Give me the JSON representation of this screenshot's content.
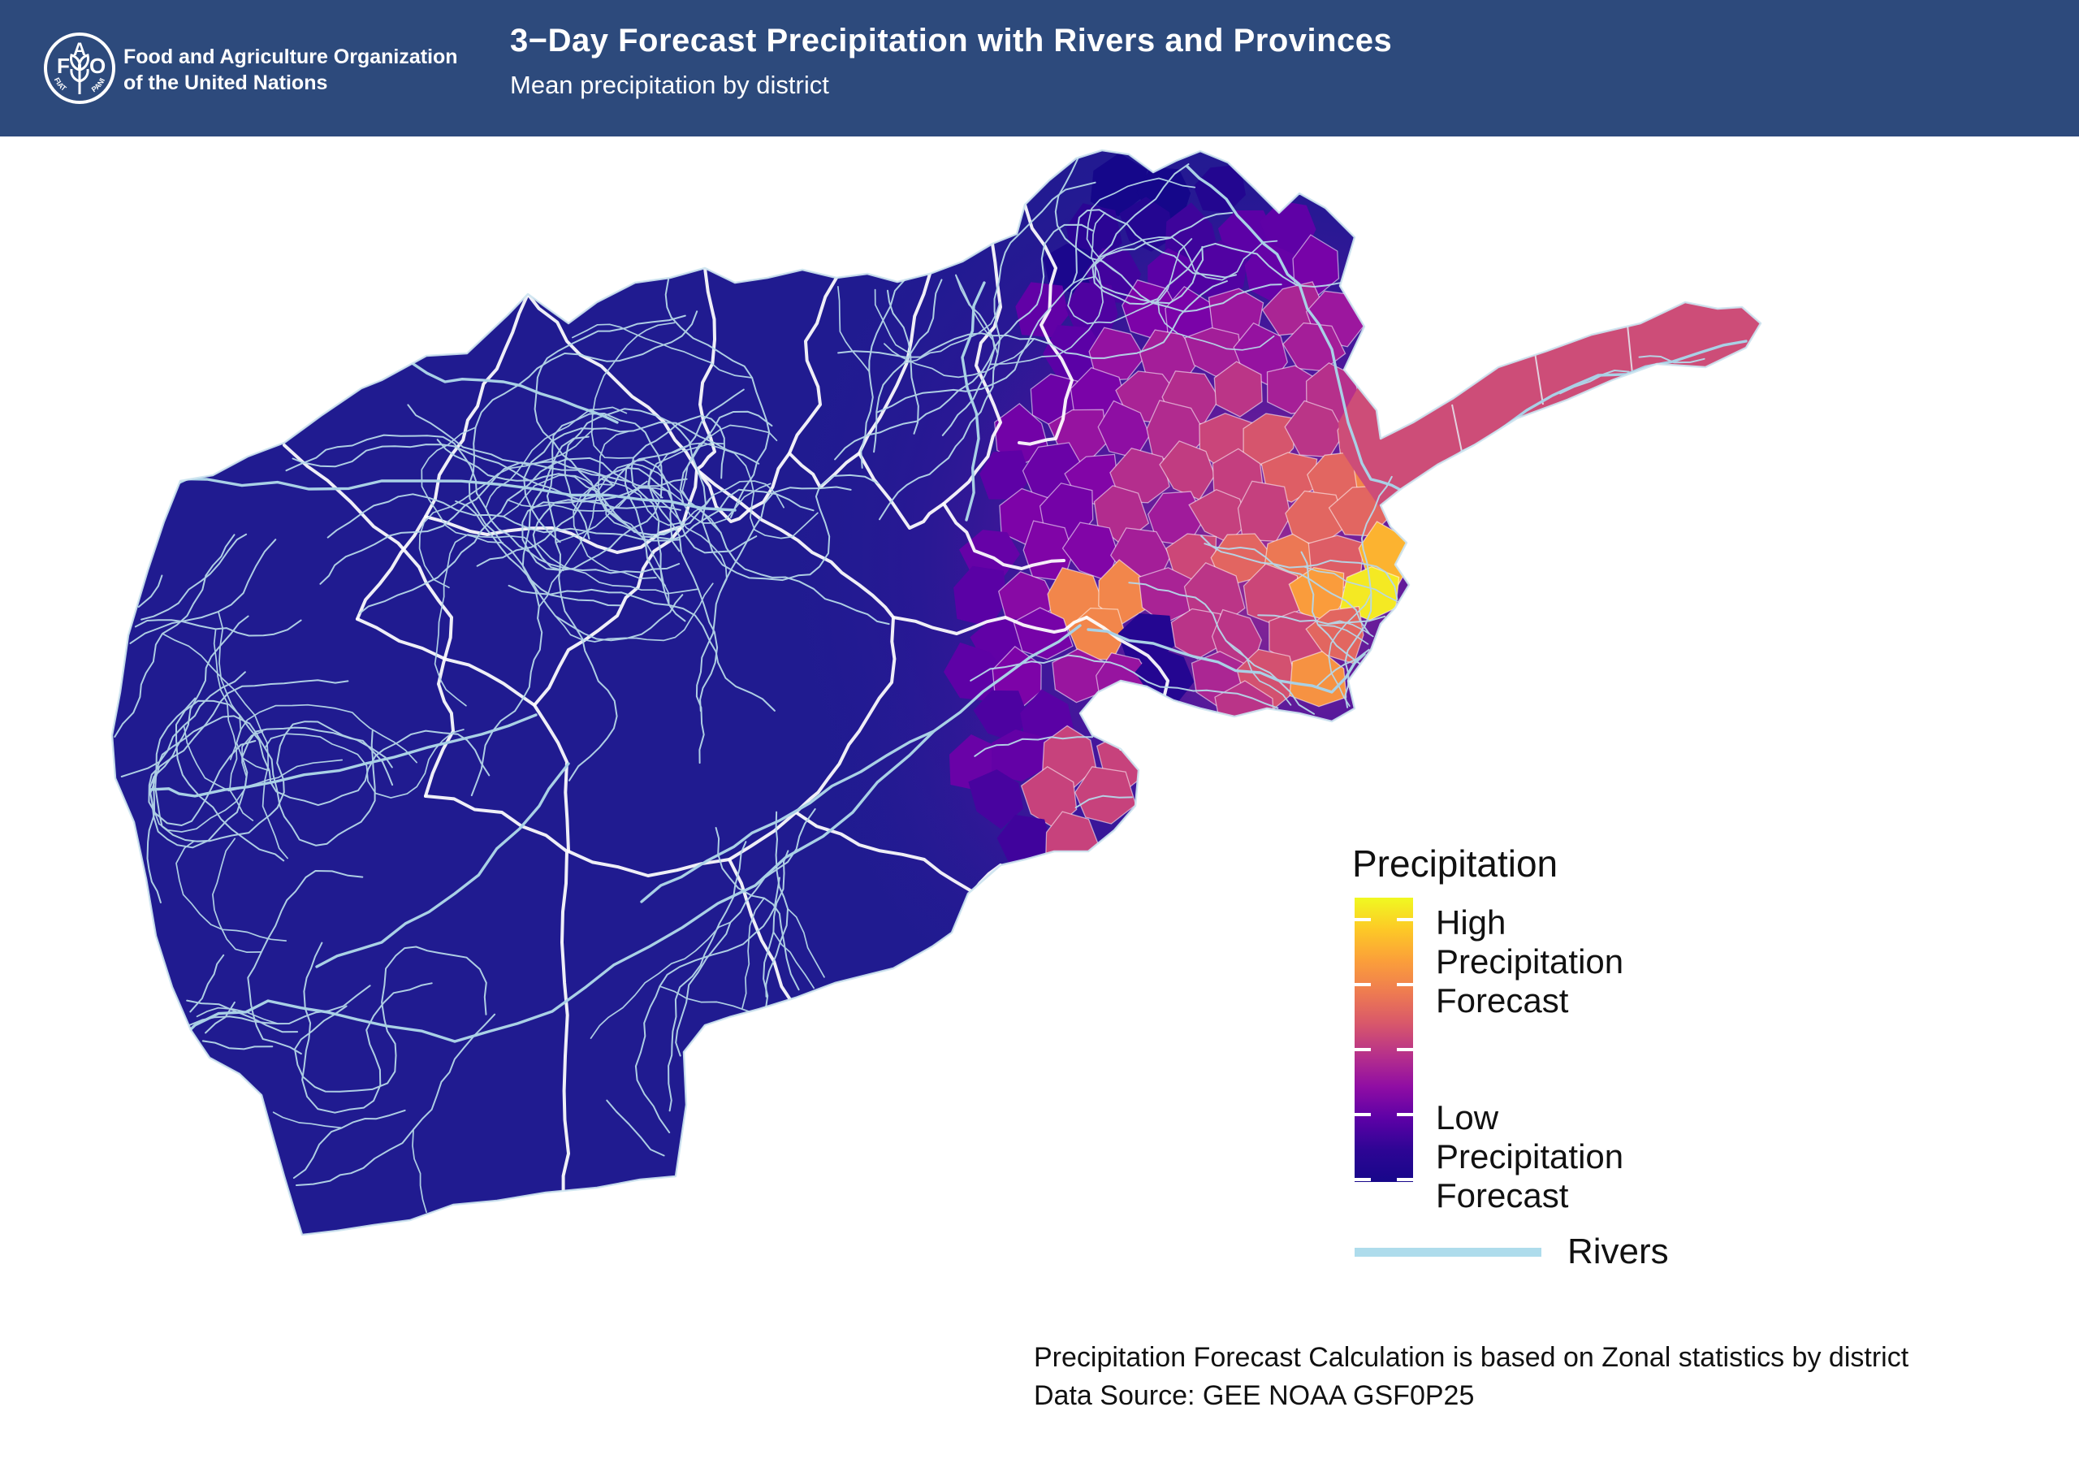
{
  "header": {
    "bg_color": "#2d4a7c",
    "org_line1": "Food and Agriculture Organization",
    "org_line2": "of the United Nations",
    "title": "3−Day Forecast Precipitation with Rivers and Provinces",
    "subtitle": "Mean precipitation by district",
    "logo": {
      "letters": [
        "F",
        "A",
        "O"
      ],
      "motto_left": "FIAT",
      "motto_right": "PANIS"
    }
  },
  "legend": {
    "title": "Precipitation",
    "high_label": "High Precipitation Forecast",
    "low_label": "Low Precipitation Forecast",
    "rivers_label": "Rivers",
    "gradient_top_to_bottom": [
      "#f0f921",
      "#fdc926",
      "#fb9f3a",
      "#ee7b51",
      "#d8576b",
      "#b6308b",
      "#8f0da4",
      "#5c01a6",
      "#2d0594",
      "#17078a"
    ],
    "rivers_swatch_color": "#aedcec",
    "tick_color": "#ffffff"
  },
  "footer": {
    "line1": "Precipitation Forecast Calculation is based on Zonal statistics by district",
    "line2": "Data Source: GEE NOAA GSF0P25"
  },
  "map": {
    "base_color": "#201b90",
    "river_color": "#b6d8e9",
    "major_river_color": "#a9d1e6",
    "province_border_color": "#ffffff",
    "country_border_color": "#cde4f0",
    "wakhan_color": "#cd4d78",
    "high_spot_color": "#f2f21f",
    "plasma_stops": [
      [
        0,
        "#0d0887"
      ],
      [
        0.12,
        "#3a049a"
      ],
      [
        0.25,
        "#5c01a6"
      ],
      [
        0.38,
        "#7e03a8"
      ],
      [
        0.5,
        "#9c179e"
      ],
      [
        0.6,
        "#b52f8c"
      ],
      [
        0.7,
        "#cc4778"
      ],
      [
        0.78,
        "#de5f65"
      ],
      [
        0.86,
        "#ed7953"
      ],
      [
        0.92,
        "#fb9f3a"
      ],
      [
        0.97,
        "#fdc926"
      ],
      [
        1,
        "#f0f921"
      ]
    ]
  }
}
